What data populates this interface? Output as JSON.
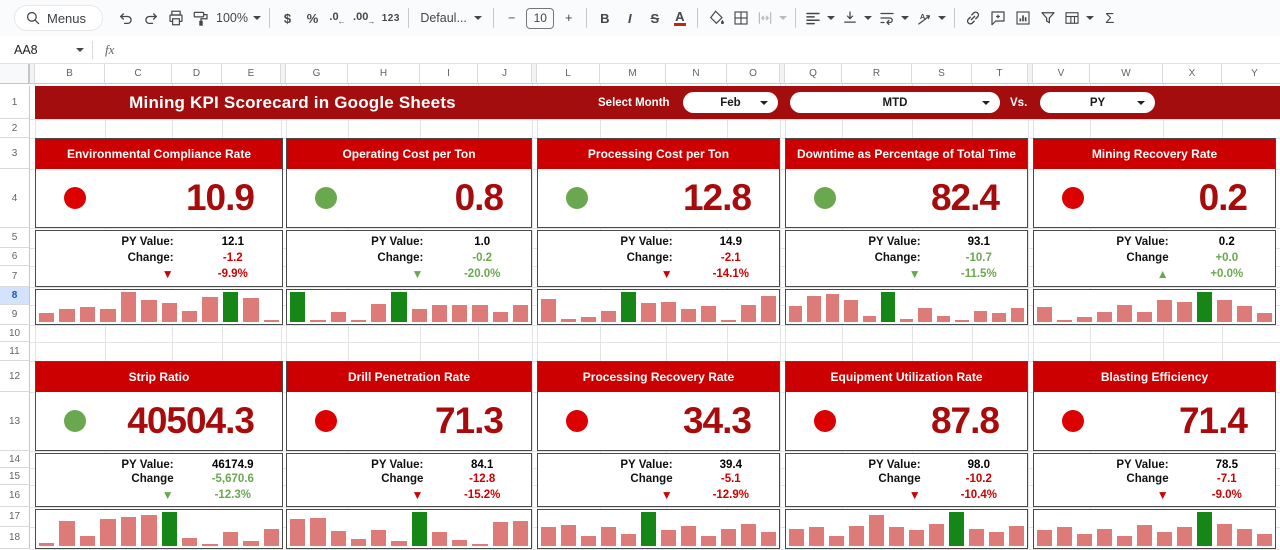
{
  "toolbar": {
    "menus": "Menus",
    "zoom": "100%",
    "currency": "$",
    "percent": "%",
    "dec_dec": ".0",
    "dec_arrow": "←",
    "inc_dec": ".00",
    "inc_arrow": "→",
    "more_formats": "123",
    "font": "Defaul...",
    "minus": "−",
    "font_size": "10",
    "plus": "+",
    "bold": "B",
    "italic": "I",
    "strikethrough": "S",
    "text_color": "A",
    "sigma": "Σ"
  },
  "formula_bar": {
    "name_box": "AA8",
    "fx": "fx"
  },
  "header": {
    "title": "Mining KPI Scorecard in Google Sheets",
    "select_month": "Select Month",
    "month": "Feb",
    "period": "MTD",
    "vs": "Vs.",
    "compare": "PY"
  },
  "sheet": {
    "columns": [
      "",
      "B",
      "C",
      "D",
      "E",
      "",
      "G",
      "H",
      "I",
      "J",
      "",
      "L",
      "M",
      "N",
      "O",
      "",
      "Q",
      "R",
      "S",
      "T",
      "",
      "V",
      "W",
      "X",
      "Y"
    ],
    "rows": [
      "1",
      "2",
      "3",
      "4",
      "5",
      "6",
      "7",
      "8",
      "9",
      "10",
      "11",
      "12",
      "13",
      "14",
      "15",
      "16",
      "17",
      "18"
    ],
    "selected_row": "8"
  },
  "colors": {
    "band": "#a30d0d",
    "card_title": "#cc0000",
    "big_number": "#a80b0b",
    "red": "#cc0000",
    "green": "#6aa84f",
    "circle_red": "#dd0000",
    "circle_green": "#6aa84f",
    "spark_bar": "#dc7b78",
    "spark_green": "#168716",
    "row_highlight_bg": "#d3e3fd",
    "row_highlight_text": "#0b57d0"
  },
  "cards": [
    {
      "title": "Environmental Compliance Rate",
      "value": "10.9",
      "status": "red",
      "py_label": "PY Value:",
      "py": "12.1",
      "change_label": "Change:",
      "change": "-1.2",
      "change_tone": "red",
      "arrow": "▼",
      "pct": "-9.9%",
      "pct_tone": "red",
      "spark": {
        "values": [
          0.3,
          0.45,
          0.5,
          0.45,
          1.0,
          0.75,
          0.62,
          0.38,
          0.85,
          1.0,
          0.8,
          0.06
        ],
        "green": [
          9
        ]
      }
    },
    {
      "title": "Operating Cost per Ton",
      "value": "0.8",
      "status": "green",
      "py_label": "PY Value:",
      "py": "1.0",
      "change_label": "Change:",
      "change": "-0.2",
      "change_tone": "green",
      "arrow": "▼",
      "pct": "-20.0%",
      "pct_tone": "green",
      "spark": {
        "values": [
          1.0,
          0.06,
          0.35,
          0.06,
          0.6,
          1.0,
          0.42,
          0.56,
          0.56,
          0.56,
          0.34,
          0.56
        ],
        "green": [
          0,
          5
        ]
      }
    },
    {
      "title": "Processing Cost per Ton",
      "value": "12.8",
      "status": "green",
      "py_label": "PY Value:",
      "py": "14.9",
      "change_label": "Change:",
      "change": "-2.1",
      "change_tone": "red",
      "arrow": "▼",
      "pct": "-14.1%",
      "pct_tone": "red",
      "spark": {
        "values": [
          0.78,
          0.1,
          0.16,
          0.36,
          1.0,
          0.62,
          0.66,
          0.42,
          0.52,
          0.06,
          0.56,
          0.88
        ],
        "green": [
          4
        ]
      }
    },
    {
      "title": "Downtime as Percentage of Total Time",
      "value": "82.4",
      "status": "green",
      "py_label": "PY Value:",
      "py": "93.1",
      "change_label": "Change:",
      "change": "-10.7",
      "change_tone": "green",
      "arrow": "▼",
      "pct": "-11.5%",
      "pct_tone": "green",
      "spark": {
        "values": [
          0.55,
          0.88,
          0.95,
          0.75,
          0.2,
          1.0,
          0.1,
          0.46,
          0.2,
          0.06,
          0.36,
          0.3,
          0.46
        ],
        "green": [
          5
        ]
      }
    },
    {
      "title": "Mining Recovery Rate",
      "value": "0.2",
      "status": "red",
      "py_label": "PY Value:",
      "py": "0.2",
      "change_label": "Change",
      "change": "+0.0",
      "change_tone": "green",
      "arrow": "▲",
      "pct": "+0.0%",
      "pct_tone": "green",
      "spark": {
        "values": [
          0.5,
          0.06,
          0.16,
          0.32,
          0.56,
          0.34,
          0.72,
          0.68,
          1.0,
          0.72,
          0.52,
          0.3
        ],
        "green": [
          8
        ]
      }
    },
    {
      "title": "Strip Ratio",
      "value": "40504.3",
      "status": "green",
      "py_label": "PY Value:",
      "py": "46174.9",
      "change_label": "Change",
      "change": "-5,670.6",
      "change_tone": "green",
      "arrow": "▼",
      "pct": "-12.3%",
      "pct_tone": "green",
      "spark": {
        "values": [
          0.08,
          0.75,
          0.3,
          0.8,
          0.85,
          0.9,
          1.0,
          0.25,
          0.06,
          0.4,
          0.14,
          0.5
        ],
        "green": [
          6
        ]
      }
    },
    {
      "title": "Drill Penetration Rate",
      "value": "71.3",
      "status": "red",
      "py_label": "PY Value:",
      "py": "84.1",
      "change_label": "Change",
      "change": "-12.8",
      "change_tone": "red",
      "arrow": "▼",
      "pct": "-15.2%",
      "pct_tone": "red",
      "spark": {
        "values": [
          0.78,
          0.82,
          0.45,
          0.2,
          0.46,
          0.16,
          1.0,
          0.4,
          0.18,
          0.06,
          0.7,
          0.75
        ],
        "green": [
          6
        ]
      }
    },
    {
      "title": "Processing Recovery Rate",
      "value": "34.3",
      "status": "red",
      "py_label": "PY Value:",
      "py": "39.4",
      "change_label": "Change",
      "change": "-5.1",
      "change_tone": "red",
      "arrow": "▼",
      "pct": "-12.9%",
      "pct_tone": "red",
      "spark": {
        "values": [
          0.56,
          0.62,
          0.3,
          0.56,
          0.36,
          1.0,
          0.46,
          0.6,
          0.3,
          0.5,
          0.66,
          0.4
        ],
        "green": [
          5
        ]
      }
    },
    {
      "title": "Equipment Utilization Rate",
      "value": "87.8",
      "status": "red",
      "py_label": "PY Value:",
      "py": "98.0",
      "change_label": "Change",
      "change": "-10.2",
      "change_tone": "red",
      "arrow": "▼",
      "pct": "-10.4%",
      "pct_tone": "red",
      "spark": {
        "values": [
          0.5,
          0.56,
          0.3,
          0.6,
          0.9,
          0.56,
          0.46,
          0.66,
          1.0,
          0.5,
          0.4,
          0.6
        ],
        "green": [
          8
        ]
      }
    },
    {
      "title": "Blasting Efficiency",
      "value": "71.4",
      "status": "red",
      "py_label": "PY Value:",
      "py": "78.5",
      "change_label": "Change",
      "change": "-7.1",
      "change_tone": "red",
      "arrow": "▼",
      "pct": "-9.0%",
      "pct_tone": "red",
      "spark": {
        "values": [
          0.46,
          0.56,
          0.36,
          0.5,
          0.3,
          0.62,
          0.4,
          0.56,
          1.0,
          0.66,
          0.5,
          0.36
        ],
        "green": [
          8
        ]
      }
    }
  ]
}
